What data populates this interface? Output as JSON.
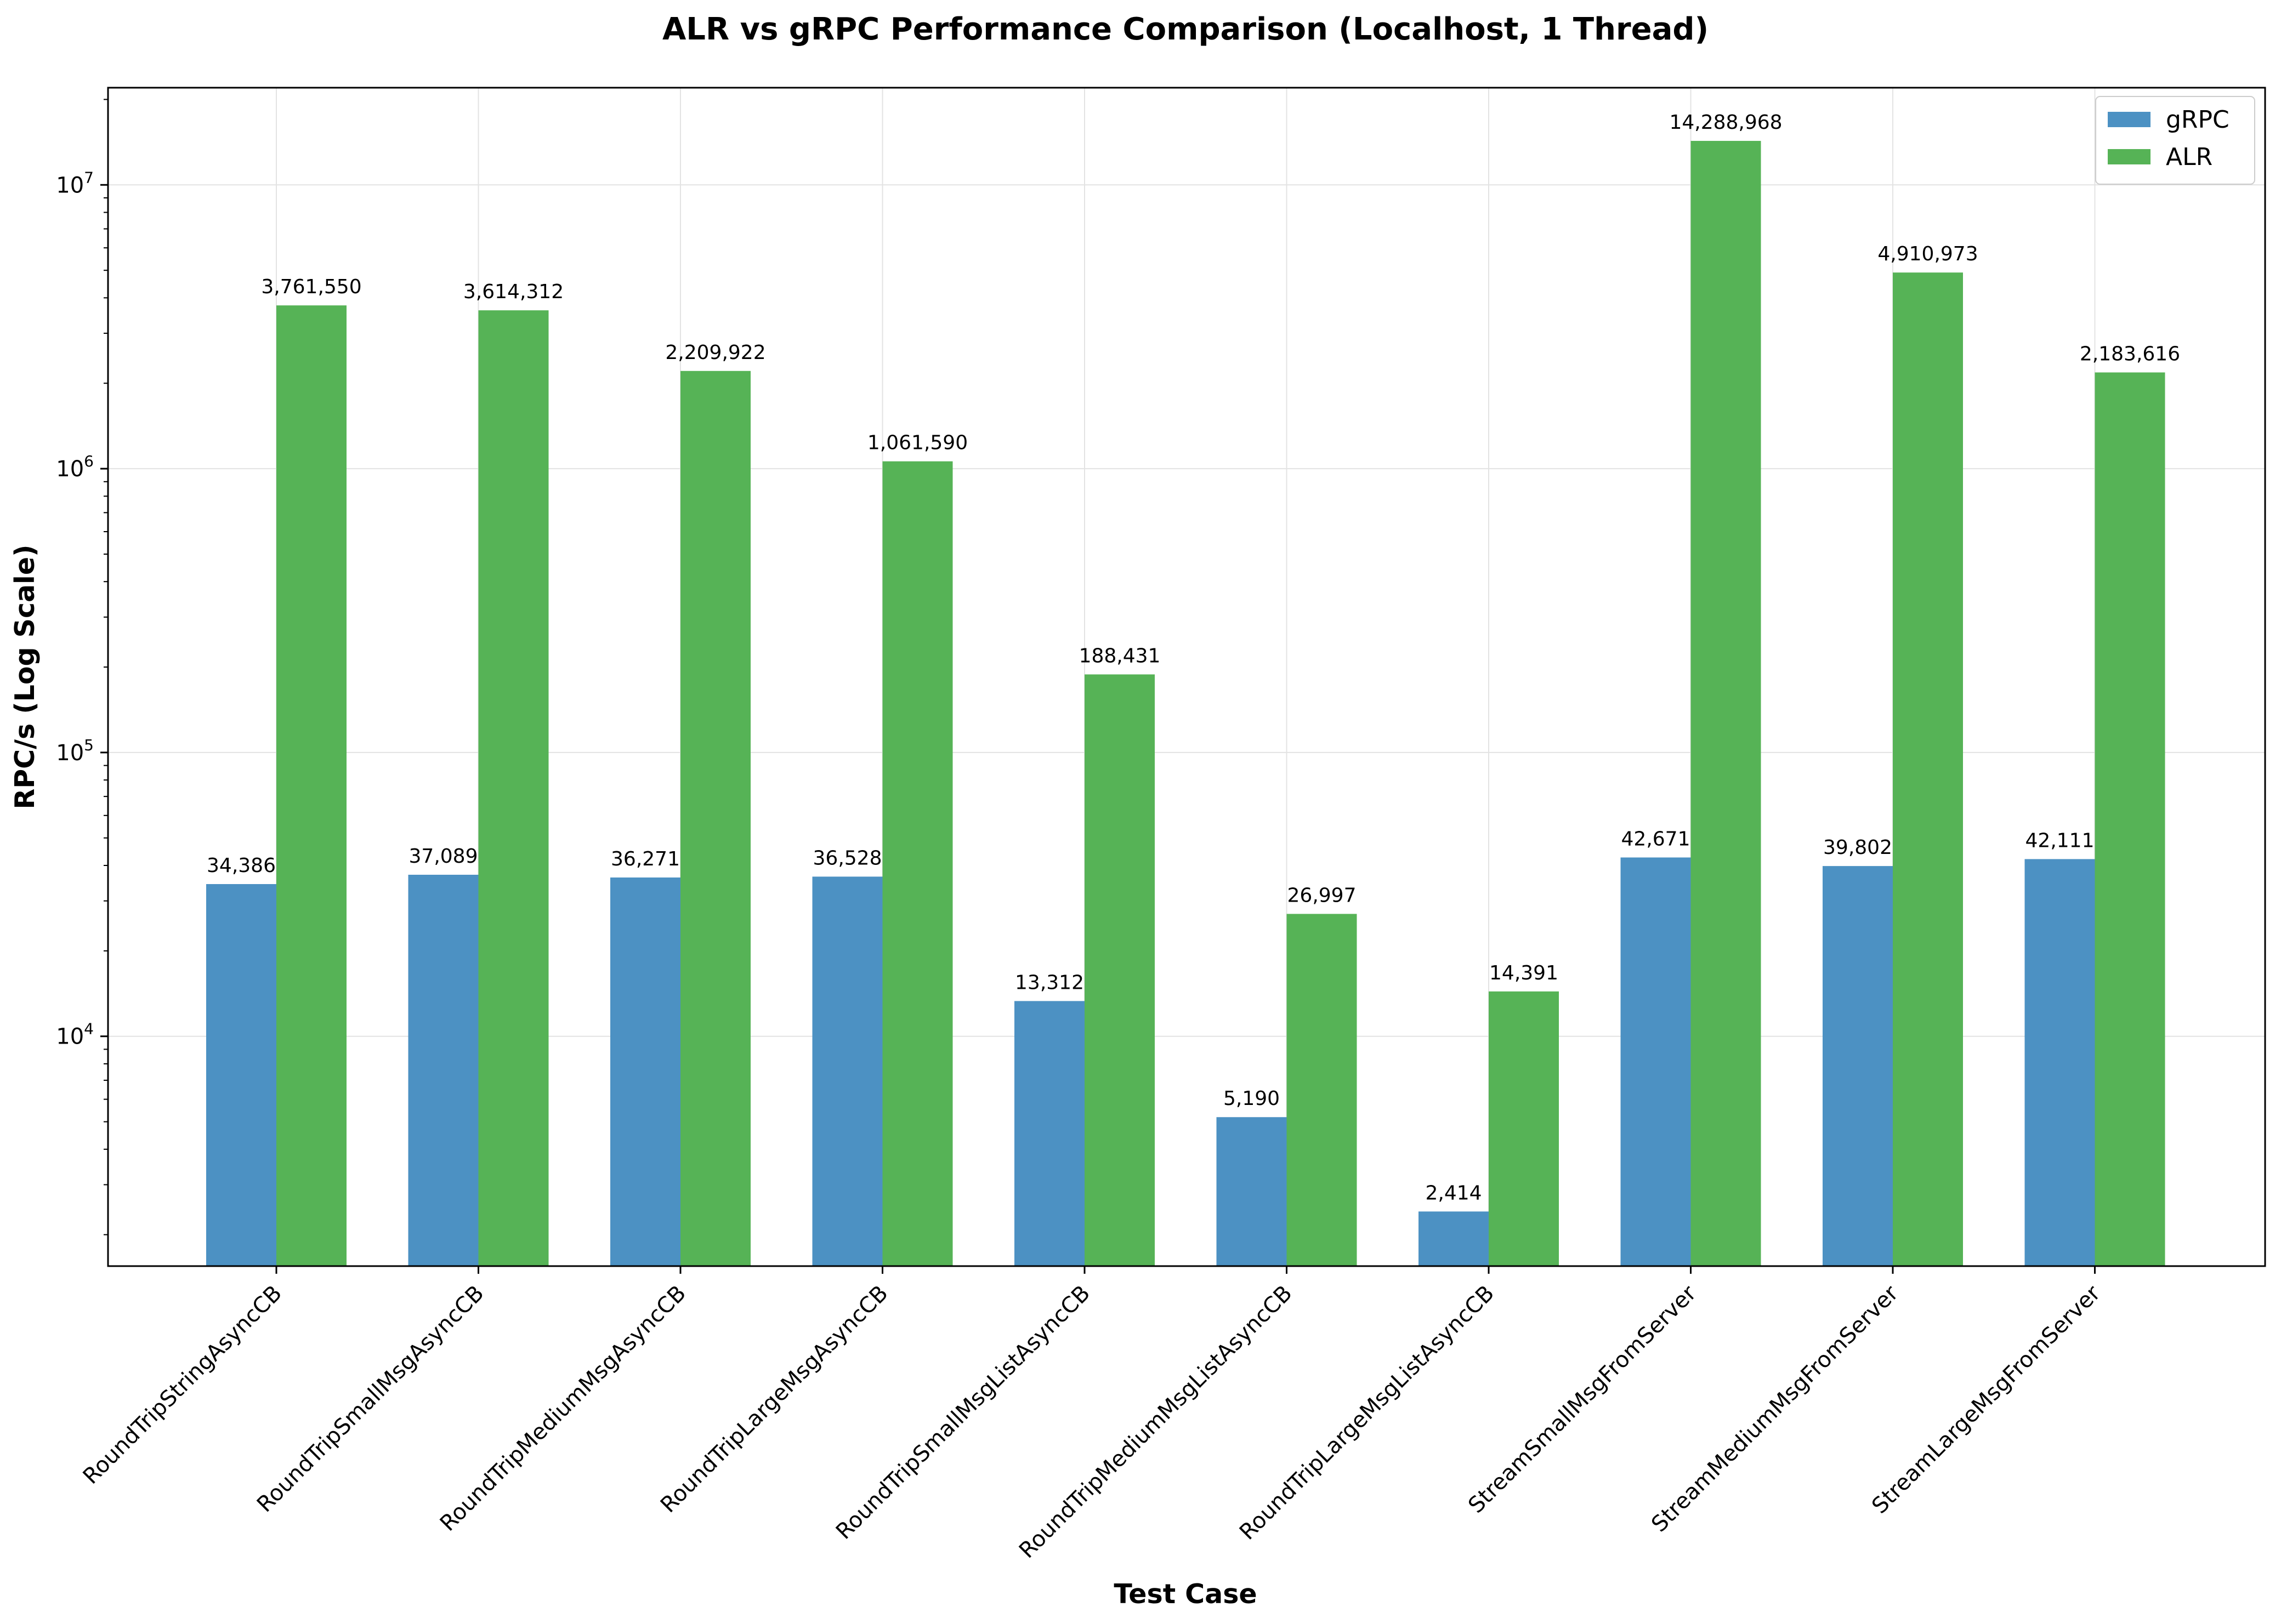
{
  "chart_data": {
    "type": "bar",
    "title": "ALR vs gRPC Performance Comparison (Localhost, 1 Thread)",
    "xlabel": "Test Case",
    "ylabel": "RPC/s (Log Scale)",
    "yscale": "log",
    "ylim": [
      1550,
      22000000
    ],
    "yticks": [
      {
        "value": 10000,
        "base": "10",
        "exp": "4"
      },
      {
        "value": 100000,
        "base": "10",
        "exp": "5"
      },
      {
        "value": 1000000,
        "base": "10",
        "exp": "6"
      },
      {
        "value": 10000000,
        "base": "10",
        "exp": "7"
      }
    ],
    "grid": true,
    "legend_position": "top-right",
    "categories": [
      "RoundTripStringAsyncCB",
      "RoundTripSmallMsgAsyncCB",
      "RoundTripMediumMsgAsyncCB",
      "RoundTripLargeMsgAsyncCB",
      "RoundTripSmallMsgListAsyncCB",
      "RoundTripMediumMsgListAsyncCB",
      "RoundTripLargeMsgListAsyncCB",
      "StreamSmallMsgFromServer",
      "StreamMediumMsgFromServer",
      "StreamLargeMsgFromServer"
    ],
    "series": [
      {
        "name": "gRPC",
        "color": "#4c91c3",
        "values": [
          34386,
          37089,
          36271,
          36528,
          13312,
          5190,
          2414,
          42671,
          39802,
          42111
        ],
        "labels": [
          "34,386",
          "37,089",
          "36,271",
          "36,528",
          "13,312",
          "5,190",
          "2,414",
          "42,671",
          "39,802",
          "42,111"
        ]
      },
      {
        "name": "ALR",
        "color": "#56b356",
        "values": [
          3761550,
          3614312,
          2209922,
          1061590,
          188431,
          26997,
          14391,
          14288968,
          4910973,
          2183616
        ],
        "labels": [
          "3,761,550",
          "3,614,312",
          "2,209,922",
          "1,061,590",
          "188,431",
          "26,997",
          "14,391",
          "14,288,968",
          "4,910,973",
          "2,183,616"
        ]
      }
    ]
  }
}
